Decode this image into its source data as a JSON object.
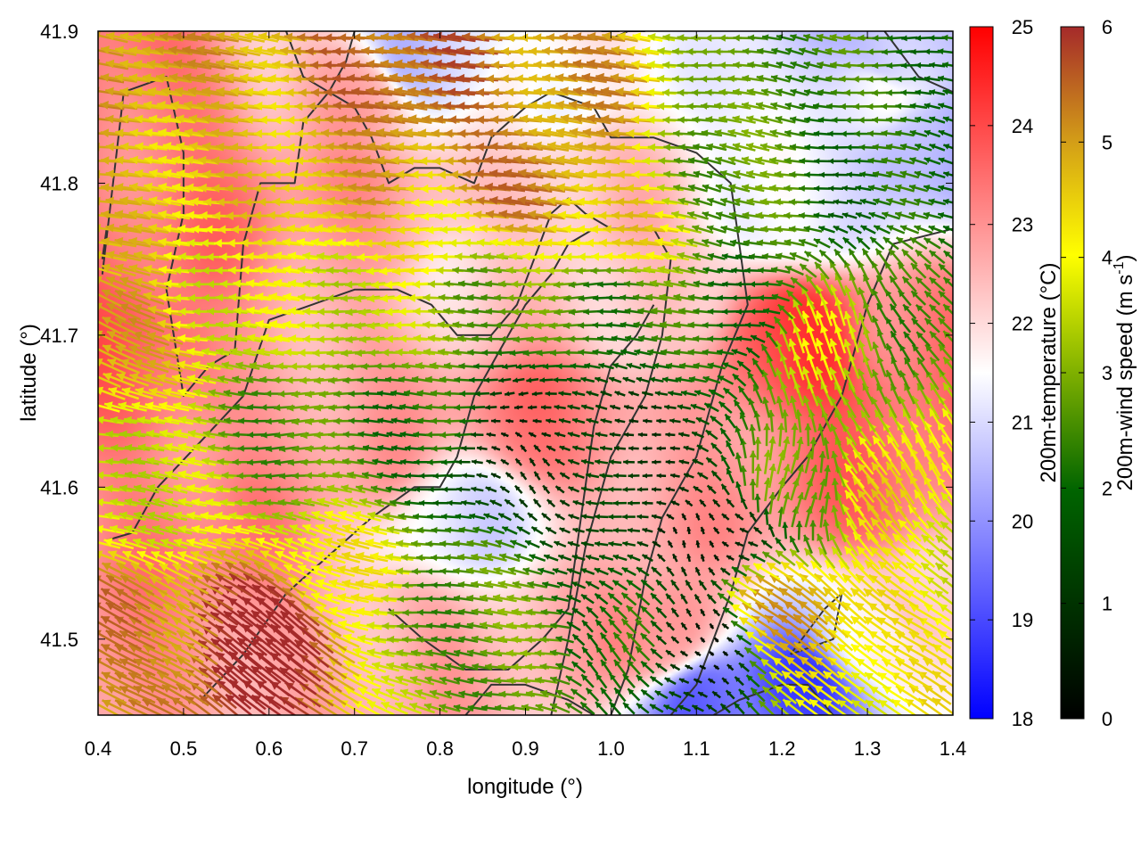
{
  "chart_data": {
    "type": "heatmap",
    "xlabel": "longitude (°)",
    "ylabel": "latitude (°)",
    "xlim": [
      0.4,
      1.4
    ],
    "ylim": [
      41.45,
      41.9
    ],
    "x_ticks": [
      "0.4",
      "0.5",
      "0.6",
      "0.7",
      "0.8",
      "0.9",
      "1.0",
      "1.1",
      "1.2",
      "1.3",
      "1.4"
    ],
    "y_ticks": [
      "41.5",
      "41.6",
      "41.7",
      "41.8",
      "41.9"
    ],
    "overlay": "wind vectors colored by speed, contour lines (terrain)",
    "colorbars": [
      {
        "label": "200m-temperature (°C)",
        "range": [
          18,
          25
        ],
        "ticks": [
          "18",
          "19",
          "20",
          "21",
          "22",
          "23",
          "24",
          "25"
        ],
        "colors": [
          "#0000ff",
          "#ffffff",
          "#ff0000"
        ]
      },
      {
        "label": "200m-wind speed (m s-1)",
        "label_main": "200m-wind speed (m s",
        "label_sup": "-1",
        "label_end": ")",
        "range": [
          0,
          6
        ],
        "ticks": [
          "0",
          "1",
          "2",
          "3",
          "4",
          "5",
          "6"
        ],
        "colors": [
          "#000000",
          "#006400",
          "#7fb000",
          "#ffff00",
          "#d4a017",
          "#a52a2a"
        ]
      }
    ],
    "temperature_centers": [
      {
        "lon": 0.45,
        "lat": 41.85,
        "t": 23.4
      },
      {
        "lon": 0.7,
        "lat": 41.86,
        "t": 22.6
      },
      {
        "lon": 0.78,
        "lat": 41.88,
        "t": 20.6
      },
      {
        "lon": 0.95,
        "lat": 41.87,
        "t": 21.6
      },
      {
        "lon": 1.3,
        "lat": 41.86,
        "t": 21.3
      },
      {
        "lon": 1.38,
        "lat": 41.83,
        "t": 20.3
      },
      {
        "lon": 1.33,
        "lat": 41.88,
        "t": 20.6
      },
      {
        "lon": 0.5,
        "lat": 41.78,
        "t": 23.3
      },
      {
        "lon": 0.72,
        "lat": 41.78,
        "t": 22.8
      },
      {
        "lon": 0.98,
        "lat": 41.8,
        "t": 22.5
      },
      {
        "lon": 1.22,
        "lat": 41.78,
        "t": 21.1
      },
      {
        "lon": 0.45,
        "lat": 41.68,
        "t": 23.6
      },
      {
        "lon": 0.62,
        "lat": 41.7,
        "t": 22.8
      },
      {
        "lon": 0.85,
        "lat": 41.73,
        "t": 22.2
      },
      {
        "lon": 1.05,
        "lat": 41.72,
        "t": 22.0
      },
      {
        "lon": 1.22,
        "lat": 41.7,
        "t": 24.3
      },
      {
        "lon": 1.35,
        "lat": 41.7,
        "t": 23.3
      },
      {
        "lon": 0.5,
        "lat": 41.58,
        "t": 23.2
      },
      {
        "lon": 0.7,
        "lat": 41.62,
        "t": 22.7
      },
      {
        "lon": 0.93,
        "lat": 41.64,
        "t": 23.3
      },
      {
        "lon": 0.83,
        "lat": 41.58,
        "t": 21.2
      },
      {
        "lon": 1.1,
        "lat": 41.6,
        "t": 22.8
      },
      {
        "lon": 1.3,
        "lat": 41.6,
        "t": 23.4
      },
      {
        "lon": 0.5,
        "lat": 41.48,
        "t": 22.9
      },
      {
        "lon": 0.75,
        "lat": 41.5,
        "t": 22.7
      },
      {
        "lon": 0.92,
        "lat": 41.5,
        "t": 22.4
      },
      {
        "lon": 1.05,
        "lat": 41.5,
        "t": 23.0
      },
      {
        "lon": 1.12,
        "lat": 41.46,
        "t": 19.6
      },
      {
        "lon": 1.22,
        "lat": 41.47,
        "t": 19.1
      },
      {
        "lon": 1.3,
        "lat": 41.5,
        "t": 21.6
      },
      {
        "lon": 1.38,
        "lat": 41.52,
        "t": 22.5
      }
    ],
    "wind_centers": [
      {
        "lon": 0.42,
        "lat": 41.88,
        "u": -5.0,
        "v": 1.0
      },
      {
        "lon": 0.78,
        "lat": 41.87,
        "u": -5.5,
        "v": 0.5
      },
      {
        "lon": 0.95,
        "lat": 41.86,
        "u": -5.0,
        "v": 0.5
      },
      {
        "lon": 1.2,
        "lat": 41.88,
        "u": -2.5,
        "v": 0.3
      },
      {
        "lon": 1.38,
        "lat": 41.88,
        "u": -2.2,
        "v": 0.2
      },
      {
        "lon": 0.42,
        "lat": 41.78,
        "u": -4.5,
        "v": 0.5
      },
      {
        "lon": 0.55,
        "lat": 41.82,
        "u": -4.5,
        "v": 0.3
      },
      {
        "lon": 0.7,
        "lat": 41.8,
        "u": -4.8,
        "v": 0.3
      },
      {
        "lon": 0.8,
        "lat": 41.76,
        "u": -4.2,
        "v": 0.0
      },
      {
        "lon": 0.9,
        "lat": 41.8,
        "u": -5.2,
        "v": 0.5
      },
      {
        "lon": 1.0,
        "lat": 41.77,
        "u": -4.5,
        "v": 0.5
      },
      {
        "lon": 1.15,
        "lat": 41.8,
        "u": -2.6,
        "v": 0.4
      },
      {
        "lon": 1.32,
        "lat": 41.8,
        "u": -2.0,
        "v": 0.3
      },
      {
        "lon": 0.42,
        "lat": 41.7,
        "u": -4.6,
        "v": 2.0
      },
      {
        "lon": 0.55,
        "lat": 41.72,
        "u": -3.8,
        "v": 0.3
      },
      {
        "lon": 0.72,
        "lat": 41.72,
        "u": -3.6,
        "v": 0.0
      },
      {
        "lon": 0.85,
        "lat": 41.73,
        "u": -2.8,
        "v": 0.0
      },
      {
        "lon": 1.0,
        "lat": 41.72,
        "u": -2.4,
        "v": 0.0
      },
      {
        "lon": 1.15,
        "lat": 41.72,
        "u": -2.2,
        "v": 0.3
      },
      {
        "lon": 1.25,
        "lat": 41.7,
        "u": -1.0,
        "v": 3.5
      },
      {
        "lon": 1.35,
        "lat": 41.72,
        "u": -1.5,
        "v": 2.0
      },
      {
        "lon": 0.45,
        "lat": 41.6,
        "u": -3.6,
        "v": 0.5
      },
      {
        "lon": 0.62,
        "lat": 41.64,
        "u": -2.6,
        "v": 0.0
      },
      {
        "lon": 0.78,
        "lat": 41.64,
        "u": -2.2,
        "v": 0.0
      },
      {
        "lon": 0.88,
        "lat": 41.62,
        "u": -0.8,
        "v": 0.5
      },
      {
        "lon": 0.95,
        "lat": 41.64,
        "u": -1.0,
        "v": 0.0
      },
      {
        "lon": 1.05,
        "lat": 41.6,
        "u": -1.2,
        "v": 0.3
      },
      {
        "lon": 1.12,
        "lat": 41.57,
        "u": -0.4,
        "v": 0.2
      },
      {
        "lon": 1.22,
        "lat": 41.6,
        "u": 0.5,
        "v": 3.0
      },
      {
        "lon": 1.32,
        "lat": 41.6,
        "u": -2.5,
        "v": 3.5
      },
      {
        "lon": 1.38,
        "lat": 41.56,
        "u": -3.0,
        "v": 2.5
      },
      {
        "lon": 0.45,
        "lat": 41.5,
        "u": -4.5,
        "v": 2.5
      },
      {
        "lon": 0.6,
        "lat": 41.5,
        "u": -5.0,
        "v": 4.0
      },
      {
        "lon": 0.7,
        "lat": 41.54,
        "u": -4.0,
        "v": 1.0
      },
      {
        "lon": 0.8,
        "lat": 41.52,
        "u": -2.6,
        "v": 0.0
      },
      {
        "lon": 0.9,
        "lat": 41.5,
        "u": -2.8,
        "v": 0.5
      },
      {
        "lon": 1.0,
        "lat": 41.5,
        "u": -1.5,
        "v": 1.5
      },
      {
        "lon": 1.1,
        "lat": 41.5,
        "u": -0.5,
        "v": 0.5
      },
      {
        "lon": 1.2,
        "lat": 41.52,
        "u": -4.0,
        "v": 3.0
      },
      {
        "lon": 1.32,
        "lat": 41.5,
        "u": -3.5,
        "v": 2.5
      }
    ],
    "contours": [
      [
        [
          0.405,
          41.74
        ],
        [
          0.43,
          41.86
        ],
        [
          0.48,
          41.87
        ],
        [
          0.5,
          41.82
        ],
        [
          0.5,
          41.78
        ],
        [
          0.48,
          41.73
        ],
        [
          0.5,
          41.66
        ],
        [
          0.53,
          41.68
        ],
        [
          0.56,
          41.69
        ],
        [
          0.57,
          41.76
        ],
        [
          0.59,
          41.8
        ],
        [
          0.63,
          41.8
        ],
        [
          0.64,
          41.84
        ],
        [
          0.67,
          41.86
        ],
        [
          0.7,
          41.85
        ],
        [
          0.72,
          41.83
        ],
        [
          0.74,
          41.8
        ],
        [
          0.77,
          41.81
        ],
        [
          0.8,
          41.81
        ],
        [
          0.84,
          41.8
        ],
        [
          0.86,
          41.83
        ],
        [
          0.9,
          41.85
        ],
        [
          0.93,
          41.86
        ],
        [
          0.98,
          41.85
        ],
        [
          1.0,
          41.83
        ],
        [
          1.05,
          41.83
        ],
        [
          1.1,
          41.82
        ],
        [
          1.14,
          41.8
        ],
        [
          1.15,
          41.76
        ],
        [
          1.16,
          41.72
        ],
        [
          1.13,
          41.68
        ],
        [
          1.1,
          41.62
        ],
        [
          1.06,
          41.58
        ],
        [
          1.04,
          41.54
        ],
        [
          1.02,
          41.48
        ],
        [
          1.0,
          41.45
        ]
      ],
      [
        [
          0.41,
          41.565
        ],
        [
          0.44,
          41.57
        ],
        [
          0.47,
          41.6
        ],
        [
          0.52,
          41.63
        ],
        [
          0.57,
          41.66
        ],
        [
          0.6,
          41.71
        ],
        [
          0.65,
          41.72
        ],
        [
          0.7,
          41.73
        ],
        [
          0.75,
          41.73
        ],
        [
          0.79,
          41.72
        ],
        [
          0.82,
          41.7
        ],
        [
          0.86,
          41.7
        ],
        [
          0.89,
          41.72
        ],
        [
          0.91,
          41.75
        ],
        [
          0.93,
          41.78
        ],
        [
          0.95,
          41.79
        ],
        [
          0.97,
          41.78
        ],
        [
          1.0,
          41.77
        ],
        [
          1.05,
          41.77
        ],
        [
          1.07,
          41.75
        ],
        [
          1.06,
          41.7
        ],
        [
          1.04,
          41.66
        ],
        [
          1.0,
          41.62
        ],
        [
          0.97,
          41.56
        ],
        [
          0.95,
          41.5
        ],
        [
          0.93,
          41.45
        ]
      ],
      [
        [
          0.52,
          41.46
        ],
        [
          0.57,
          41.49
        ],
        [
          0.62,
          41.53
        ],
        [
          0.66,
          41.55
        ],
        [
          0.68,
          41.56
        ],
        [
          0.72,
          41.58
        ],
        [
          0.77,
          41.6
        ],
        [
          0.8,
          41.6
        ],
        [
          0.82,
          41.62
        ],
        [
          0.84,
          41.66
        ],
        [
          0.87,
          41.69
        ],
        [
          0.9,
          41.72
        ],
        [
          0.93,
          41.74
        ],
        [
          0.95,
          41.76
        ],
        [
          0.98,
          41.77
        ]
      ],
      [
        [
          0.74,
          41.52
        ],
        [
          0.78,
          41.5
        ],
        [
          0.83,
          41.48
        ],
        [
          0.88,
          41.48
        ],
        [
          0.92,
          41.5
        ],
        [
          0.95,
          41.52
        ],
        [
          0.96,
          41.56
        ],
        [
          0.97,
          41.6
        ],
        [
          0.98,
          41.64
        ],
        [
          1.0,
          41.68
        ],
        [
          1.03,
          41.7
        ],
        [
          1.05,
          41.72
        ]
      ],
      [
        [
          0.83,
          41.45
        ],
        [
          0.86,
          41.47
        ],
        [
          0.9,
          41.47
        ],
        [
          0.95,
          41.46
        ],
        [
          0.98,
          41.45
        ]
      ],
      [
        [
          1.07,
          41.45
        ],
        [
          1.1,
          41.47
        ],
        [
          1.14,
          41.53
        ],
        [
          1.16,
          41.57
        ],
        [
          1.2,
          41.6
        ],
        [
          1.23,
          41.62
        ],
        [
          1.27,
          41.66
        ],
        [
          1.3,
          41.72
        ],
        [
          1.33,
          41.76
        ],
        [
          1.4,
          41.77
        ]
      ],
      [
        [
          0.62,
          41.9
        ],
        [
          0.64,
          41.87
        ],
        [
          0.67,
          41.86
        ],
        [
          0.69,
          41.88
        ],
        [
          0.7,
          41.9
        ]
      ],
      [
        [
          1.21,
          41.49
        ],
        [
          1.26,
          41.5
        ],
        [
          1.27,
          41.53
        ],
        [
          1.25,
          41.52
        ],
        [
          1.21,
          41.49
        ]
      ],
      [
        [
          1.12,
          41.45
        ],
        [
          1.15,
          41.46
        ],
        [
          1.2,
          41.47
        ],
        [
          1.23,
          41.47
        ],
        [
          1.26,
          41.45
        ]
      ],
      [
        [
          1.0,
          41.895
        ],
        [
          1.02,
          41.9
        ],
        [
          1.04,
          41.9
        ]
      ],
      [
        [
          0.96,
          41.905
        ],
        [
          0.99,
          41.9
        ],
        [
          1.01,
          41.9
        ]
      ],
      [
        [
          1.32,
          41.9
        ],
        [
          1.36,
          41.87
        ],
        [
          1.4,
          41.86
        ]
      ],
      [
        [
          0.405,
          41.75
        ],
        [
          0.41,
          41.77
        ]
      ]
    ]
  }
}
